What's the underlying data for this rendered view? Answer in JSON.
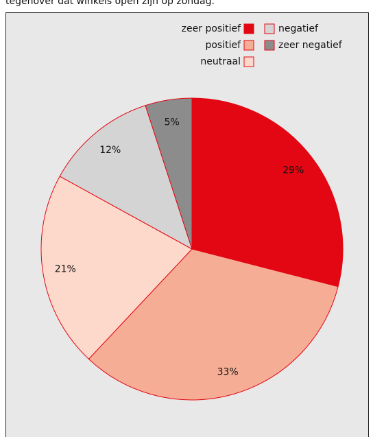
{
  "chart_data": {
    "type": "pie",
    "title": "tegenover dat winkels open zijn op zondag.",
    "categories": [
      "zeer positief",
      "positief",
      "neutraal",
      "negatief",
      "zeer negatief"
    ],
    "values": [
      29,
      33,
      21,
      12,
      5
    ],
    "value_labels": [
      "29%",
      "33%",
      "21%",
      "12%",
      "5%"
    ],
    "colors": [
      "#e30613",
      "#f5ae95",
      "#fdd9cc",
      "#d4d4d4",
      "#8c8c8c"
    ],
    "legend": "top-right"
  }
}
